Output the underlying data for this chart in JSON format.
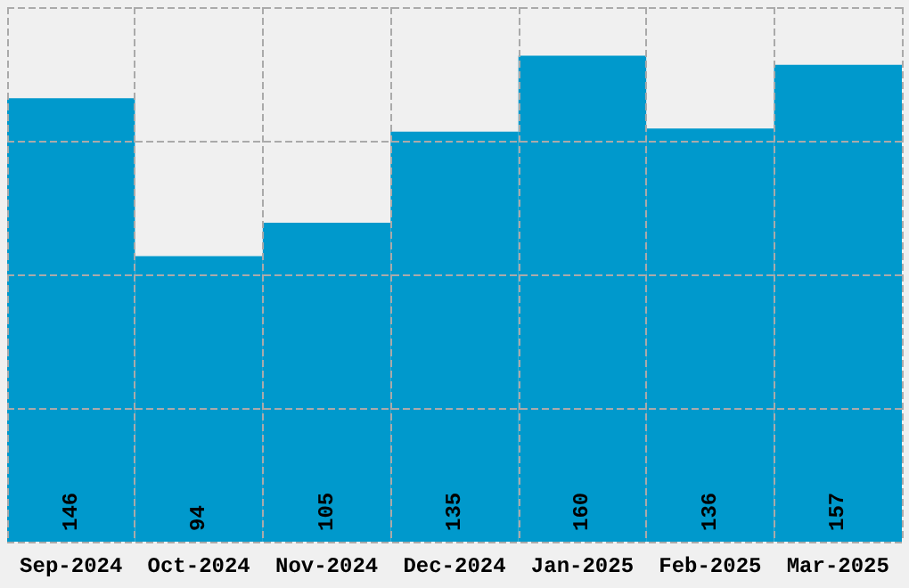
{
  "chart_data": {
    "type": "bar",
    "categories": [
      "Sep-2024",
      "Oct-2024",
      "Nov-2024",
      "Dec-2024",
      "Jan-2025",
      "Feb-2025",
      "Mar-2025"
    ],
    "values": [
      146,
      94,
      105,
      135,
      160,
      136,
      157
    ],
    "color": "#0099cc",
    "data_labels": true,
    "grid": true,
    "tick_labels": "x",
    "ylim": [
      0,
      176
    ]
  }
}
